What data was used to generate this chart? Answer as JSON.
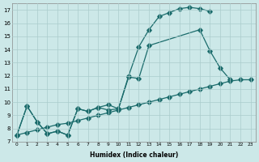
{
  "xlabel": "Humidex (Indice chaleur)",
  "background_color": "#cce8e8",
  "grid_color": "#aacccc",
  "line_color": "#1a6b6b",
  "xlim": [
    -0.5,
    23.5
  ],
  "ylim": [
    7,
    17.5
  ],
  "yticks": [
    7,
    8,
    9,
    10,
    11,
    12,
    13,
    14,
    15,
    16,
    17
  ],
  "xticks": [
    0,
    1,
    2,
    3,
    4,
    5,
    6,
    7,
    8,
    9,
    10,
    11,
    12,
    13,
    14,
    15,
    16,
    17,
    18,
    19,
    20,
    21,
    22,
    23
  ],
  "line1_x": [
    0,
    1,
    2,
    3,
    4,
    5,
    6,
    7,
    8,
    9,
    10,
    11,
    12,
    13,
    14,
    15,
    16,
    17,
    18,
    19
  ],
  "line1_y": [
    7.5,
    9.7,
    8.5,
    7.6,
    7.8,
    7.5,
    9.5,
    9.3,
    9.6,
    9.8,
    9.5,
    12.0,
    14.2,
    15.5,
    16.5,
    16.8,
    17.1,
    17.2,
    17.1,
    16.9
  ],
  "line2_x": [
    0,
    1,
    2,
    3,
    4,
    5,
    6,
    7,
    8,
    9,
    10,
    11,
    12,
    13,
    18,
    19,
    20,
    21
  ],
  "line2_y": [
    7.5,
    9.7,
    8.5,
    7.6,
    7.8,
    7.5,
    9.5,
    9.3,
    9.6,
    9.4,
    9.5,
    11.9,
    11.8,
    14.3,
    15.5,
    13.9,
    12.6,
    11.7
  ],
  "line3_x": [
    0,
    1,
    2,
    3,
    4,
    5,
    6,
    7,
    8,
    9,
    10,
    11,
    12,
    13,
    14,
    15,
    16,
    17,
    18,
    19,
    20,
    21,
    22,
    23
  ],
  "line3_y": [
    7.5,
    7.7,
    7.9,
    8.1,
    8.3,
    8.4,
    8.6,
    8.8,
    9.0,
    9.2,
    9.4,
    9.6,
    9.8,
    10.0,
    10.2,
    10.4,
    10.6,
    10.8,
    11.0,
    11.2,
    11.4,
    11.6,
    11.7,
    11.7
  ]
}
